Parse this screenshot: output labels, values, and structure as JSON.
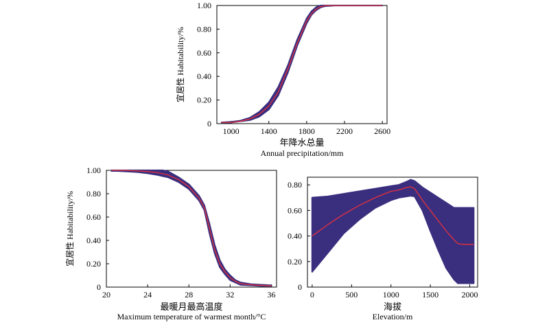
{
  "colors": {
    "band": "#3a2e7e",
    "line": "#e8323c",
    "axis": "#000000"
  },
  "chart_data": [
    {
      "id": "precip",
      "type": "line",
      "title": "",
      "xlabel_cn": "年降水总量",
      "xlabel_en": "Annual precipitation/mm",
      "ylabel": "宜居性 Habitability/%",
      "xlim": [
        850,
        2650
      ],
      "ylim": [
        0,
        1
      ],
      "xticks": [
        1000,
        1400,
        1800,
        2200,
        2600
      ],
      "yticks": [
        0,
        0.2,
        0.4,
        0.6,
        0.8,
        1.0
      ],
      "ytick_labels": [
        "0",
        "0.20",
        "0.40",
        "0.60",
        "0.80",
        "1.00"
      ],
      "series": [
        {
          "x": [
            900,
            1000,
            1100,
            1200,
            1300,
            1400,
            1500,
            1600,
            1700,
            1800,
            1850,
            1900,
            1950,
            2000,
            2100,
            2200,
            2400,
            2600
          ],
          "mean": [
            0.01,
            0.01,
            0.02,
            0.04,
            0.08,
            0.15,
            0.27,
            0.46,
            0.68,
            0.87,
            0.93,
            0.97,
            0.99,
            1.0,
            1.0,
            1.0,
            1.0,
            1.0
          ],
          "lower": [
            0.01,
            0.01,
            0.02,
            0.03,
            0.06,
            0.12,
            0.24,
            0.43,
            0.66,
            0.85,
            0.92,
            0.96,
            0.985,
            0.995,
            1.0,
            1.0,
            1.0,
            1.0
          ],
          "upper": [
            0.01,
            0.015,
            0.025,
            0.05,
            0.1,
            0.18,
            0.31,
            0.49,
            0.71,
            0.89,
            0.95,
            0.985,
            1.0,
            1.0,
            1.0,
            1.0,
            1.0,
            1.0
          ]
        }
      ]
    },
    {
      "id": "temp",
      "type": "line",
      "title": "",
      "xlabel_cn": "最暖月最高温度",
      "xlabel_en": "Maximum temperature of warmest month/°C",
      "ylabel": "宜居性 Habitability/%",
      "xlim": [
        20,
        36.5
      ],
      "ylim": [
        0,
        1
      ],
      "xticks": [
        20,
        24,
        28,
        32,
        36
      ],
      "yticks": [
        0,
        0.2,
        0.4,
        0.6,
        0.8,
        1.0
      ],
      "ytick_labels": [
        "0",
        "0.20",
        "0.40",
        "0.60",
        "0.80",
        "1.00"
      ],
      "series": [
        {
          "x": [
            20.5,
            21,
            22,
            23,
            24,
            25,
            25.5,
            26,
            27,
            28,
            29,
            29.5,
            30,
            30.5,
            31,
            31.5,
            32,
            32.5,
            33,
            34,
            35,
            36
          ],
          "mean": [
            1.0,
            1.0,
            1.0,
            0.995,
            0.99,
            0.98,
            0.97,
            0.96,
            0.92,
            0.86,
            0.76,
            0.68,
            0.5,
            0.32,
            0.2,
            0.13,
            0.08,
            0.05,
            0.03,
            0.02,
            0.015,
            0.01
          ],
          "lower": [
            0.995,
            0.995,
            0.99,
            0.985,
            0.975,
            0.96,
            0.95,
            0.94,
            0.9,
            0.84,
            0.74,
            0.66,
            0.46,
            0.29,
            0.17,
            0.11,
            0.06,
            0.04,
            0.02,
            0.015,
            0.01,
            0.01
          ],
          "upper": [
            1.0,
            1.0,
            1.0,
            1.0,
            1.0,
            1.0,
            1.0,
            0.99,
            0.94,
            0.88,
            0.78,
            0.7,
            0.54,
            0.36,
            0.23,
            0.15,
            0.1,
            0.06,
            0.04,
            0.025,
            0.02,
            0.015
          ]
        }
      ]
    },
    {
      "id": "elev",
      "type": "line",
      "title": "",
      "xlabel_cn": "海拔",
      "xlabel_en": "Elevation/m",
      "ylabel": "",
      "xlim": [
        -60,
        2100
      ],
      "ylim": [
        0,
        0.86
      ],
      "xticks": [
        0,
        500,
        1000,
        1500,
        2000
      ],
      "yticks": [
        0,
        0.2,
        0.4,
        0.6,
        0.8
      ],
      "ytick_labels": [
        "0",
        "0.20",
        "0.40",
        "0.60",
        "0.80"
      ],
      "series": [
        {
          "x": [
            0,
            200,
            400,
            600,
            800,
            1000,
            1100,
            1200,
            1250,
            1300,
            1400,
            1500,
            1600,
            1700,
            1800,
            1850,
            1900,
            2000,
            2050
          ],
          "mean": [
            0.4,
            0.49,
            0.57,
            0.64,
            0.7,
            0.75,
            0.76,
            0.78,
            0.785,
            0.77,
            0.68,
            0.6,
            0.52,
            0.44,
            0.37,
            0.34,
            0.335,
            0.335,
            0.335
          ],
          "lower": [
            0.12,
            0.27,
            0.42,
            0.53,
            0.62,
            0.68,
            0.7,
            0.71,
            0.715,
            0.71,
            0.6,
            0.44,
            0.29,
            0.15,
            0.06,
            0.03,
            0.03,
            0.03,
            0.03
          ],
          "upper": [
            0.7,
            0.71,
            0.73,
            0.75,
            0.77,
            0.79,
            0.8,
            0.825,
            0.84,
            0.83,
            0.78,
            0.74,
            0.7,
            0.66,
            0.62,
            0.62,
            0.62,
            0.62,
            0.62
          ]
        }
      ]
    }
  ]
}
